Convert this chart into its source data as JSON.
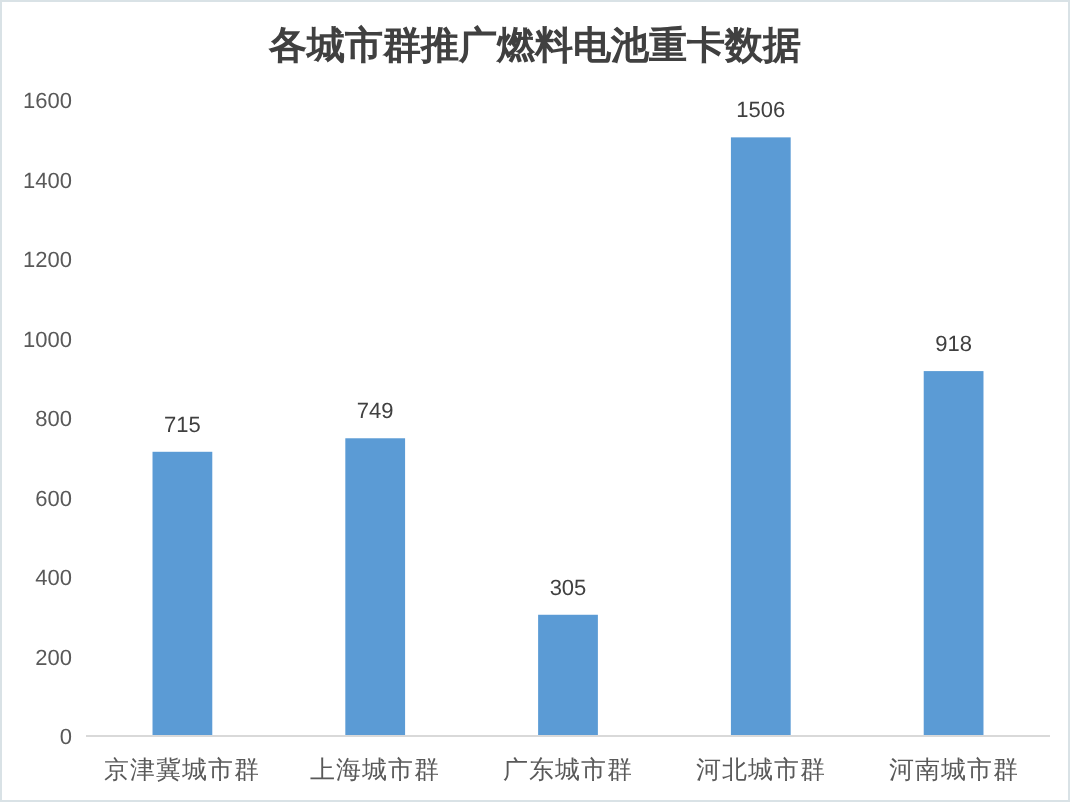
{
  "chart_data": {
    "type": "bar",
    "title": "各城市群推广燃料电池重卡数据",
    "categories": [
      "京津冀城市群",
      "上海城市群",
      "广东城市群",
      "河北城市群",
      "河南城市群"
    ],
    "values": [
      715,
      749,
      305,
      1506,
      918
    ],
    "color": "#5b9bd5",
    "ylim": [
      0,
      1600
    ],
    "yticks": [
      0,
      200,
      400,
      600,
      800,
      1000,
      1200,
      1400,
      1600
    ],
    "data_labels": true
  }
}
